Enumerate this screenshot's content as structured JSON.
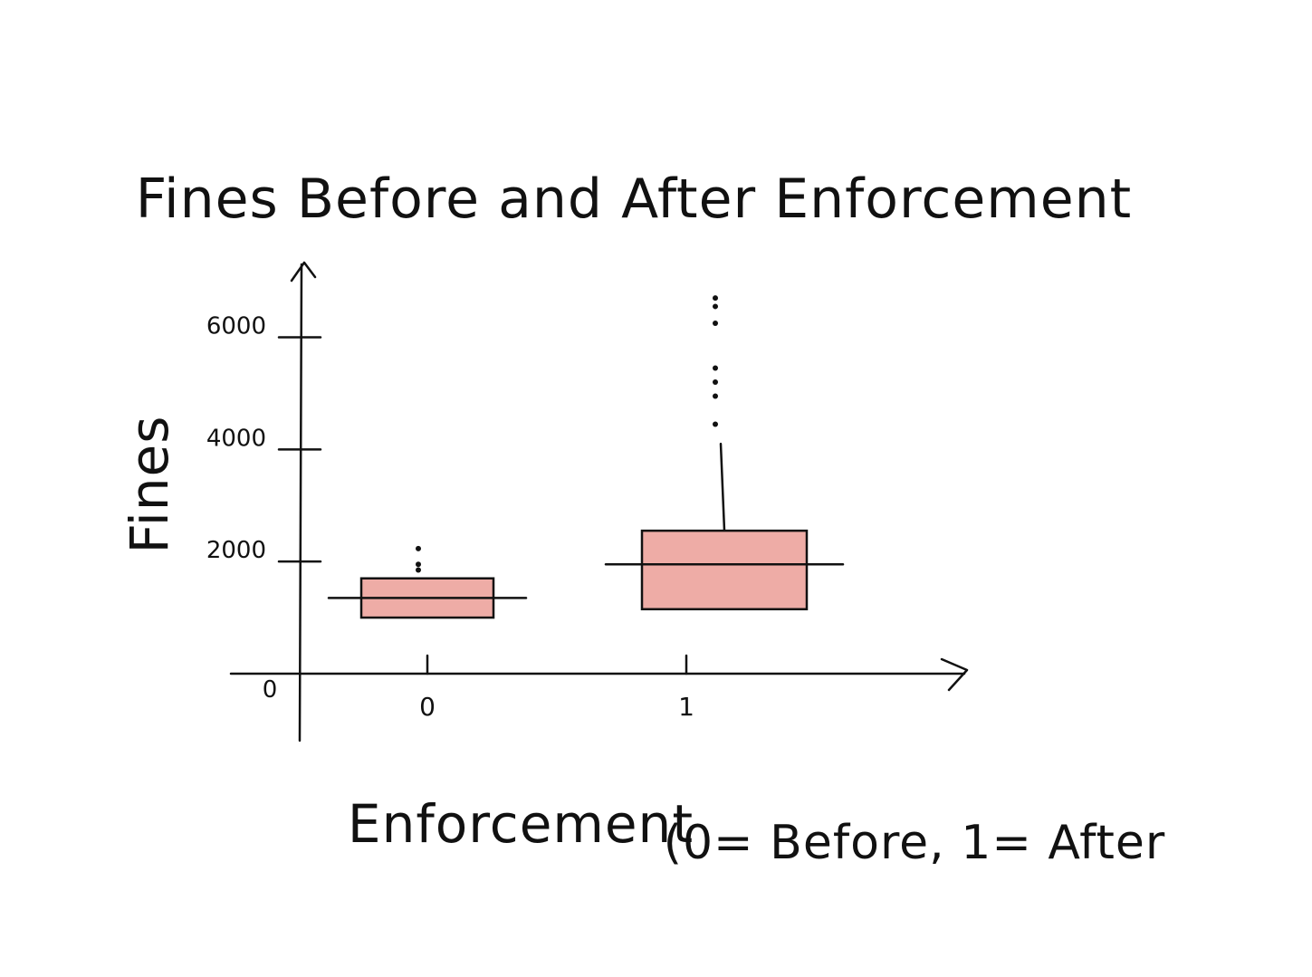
{
  "chart_data": {
    "type": "box",
    "title": "Fines Before and After Enforcement",
    "xlabel": "Enforcement",
    "ylabel": "Fines",
    "note": "(0= Before, 1= After",
    "origin_label": "0",
    "ylim": [
      0,
      7300
    ],
    "yticks": [
      {
        "value": 2000,
        "label": "2000"
      },
      {
        "value": 4000,
        "label": "4000"
      },
      {
        "value": 6000,
        "label": "6000"
      }
    ],
    "categories": [
      "0",
      "1"
    ],
    "boxes": [
      {
        "category": "0",
        "q1": 1000,
        "median": 1350,
        "q3": 1700,
        "whisker_high": 1700,
        "outliers": [
          1850,
          1950,
          2230
        ]
      },
      {
        "category": "1",
        "q1": 1150,
        "median": 1950,
        "q3": 2550,
        "whisker_high": 4100,
        "outliers": [
          4450,
          4950,
          5200,
          5450,
          6250,
          6550,
          6700
        ]
      }
    ],
    "box_color": "#eeaca6",
    "ink_color": "#111111",
    "grid": false,
    "legend": "none"
  }
}
